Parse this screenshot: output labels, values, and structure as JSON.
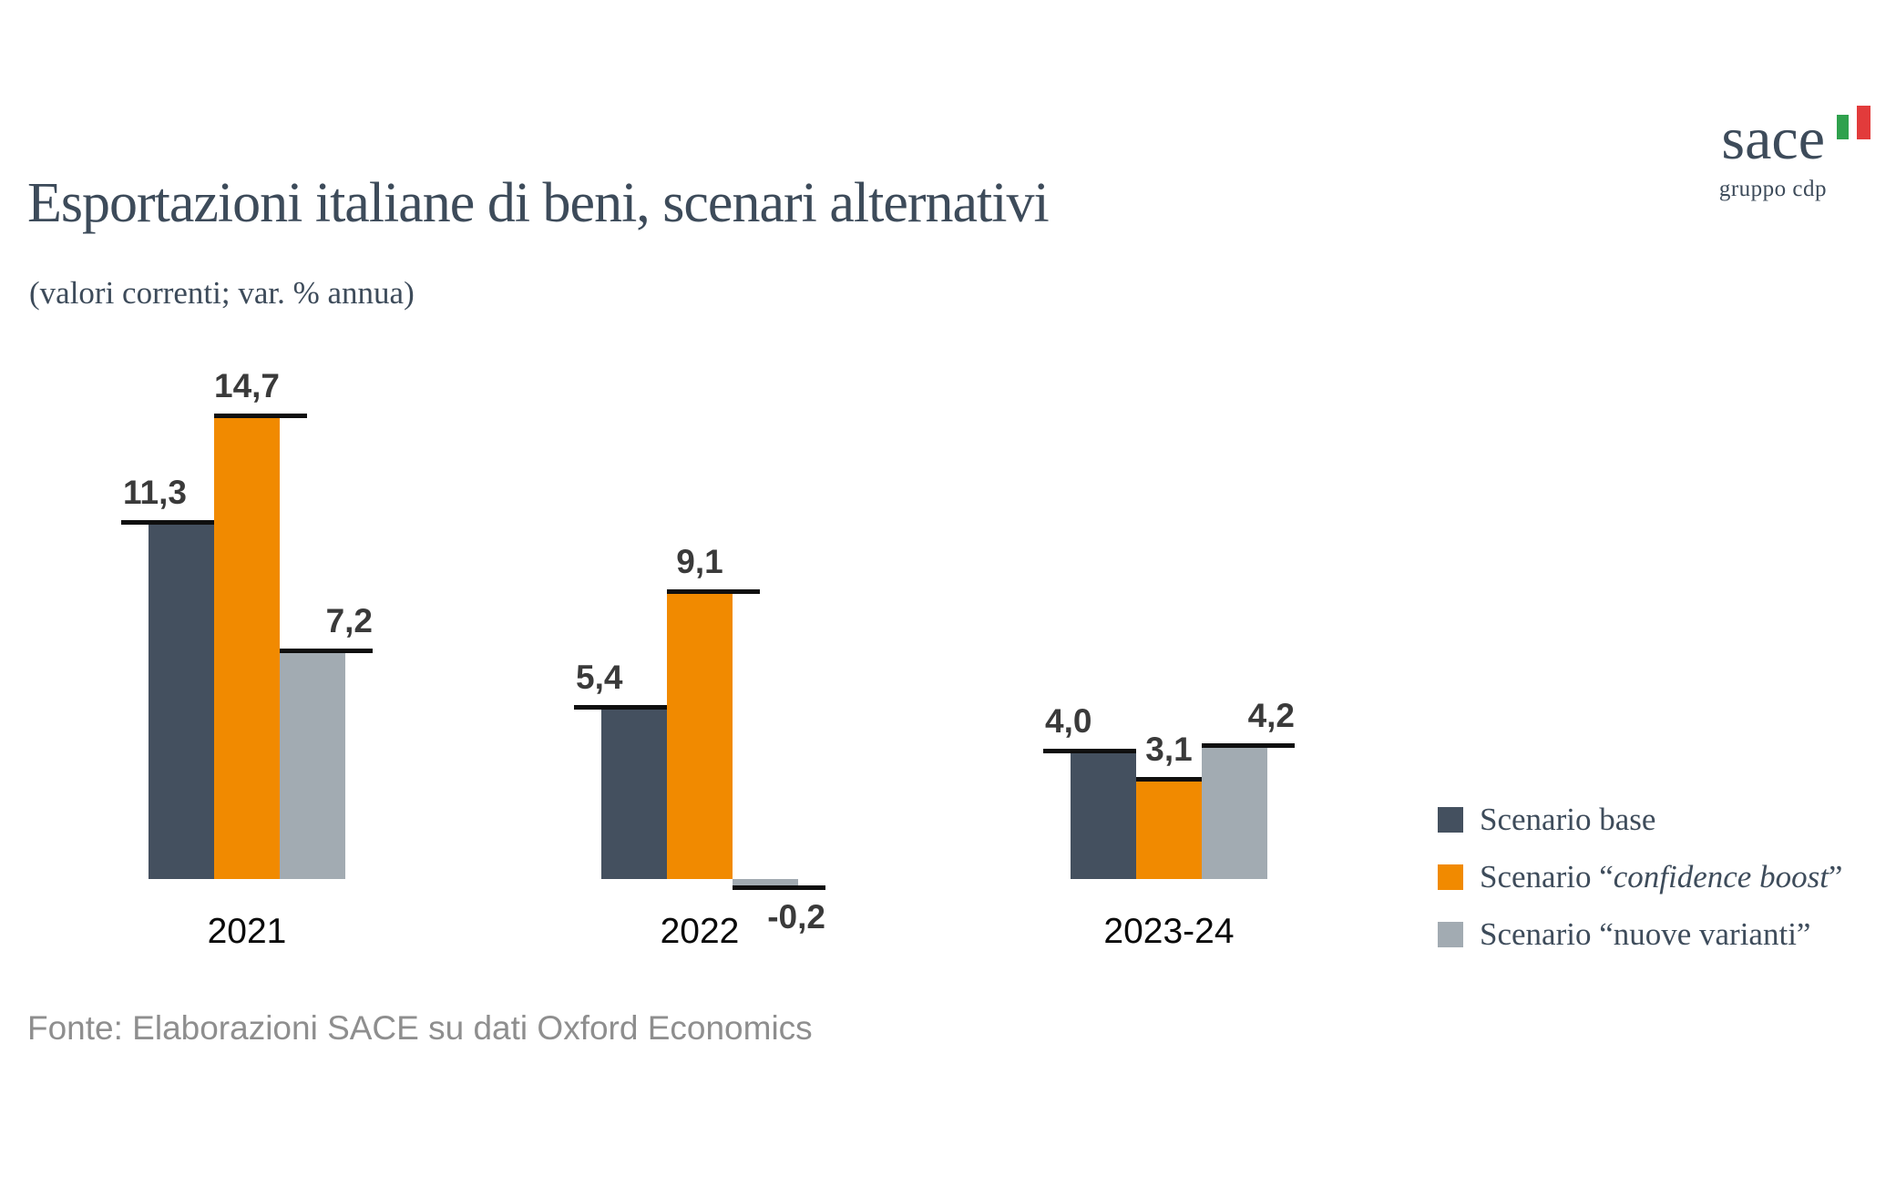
{
  "header": {
    "title": "Esportazioni italiane di beni, scenari alternativi",
    "subtitle": "(valori correnti; var. % annua)"
  },
  "logo": {
    "wordmark": "sace",
    "subtext": "gruppo cdp",
    "flag_green_color": "#2FA14D",
    "flag_red_color": "#E23B3B"
  },
  "footer": {
    "source": "Fonte: Elaborazioni SACE su dati Oxford Economics"
  },
  "colors": {
    "base": "#44505F",
    "confidence": "#F18A00",
    "varianti": "#A2ABB2",
    "marker": "#0F0F0F",
    "heading_text": "#3D4B5A",
    "value_text": "#3A3A3A",
    "footer_text": "#8E8E8E"
  },
  "chart_data": {
    "type": "bar",
    "title": "Esportazioni italiane di beni, scenari alternativi",
    "subtitle": "(valori correnti; var. % annua)",
    "categories": [
      "2021",
      "2022",
      "2023-24"
    ],
    "series": [
      {
        "name": "Scenario base",
        "color_key": "base",
        "values": [
          11.3,
          5.4,
          4.0
        ]
      },
      {
        "name": "Scenario “confidence boost”",
        "color_key": "confidence",
        "values": [
          14.7,
          9.1,
          3.1
        ]
      },
      {
        "name": "Scenario “nuove varianti”",
        "color_key": "varianti",
        "values": [
          7.2,
          -0.2,
          4.2
        ]
      }
    ],
    "value_labels": [
      [
        "11,3",
        "5,4",
        "4,0"
      ],
      [
        "14,7",
        "9,1",
        "3,1"
      ],
      [
        "7,2",
        "-0,2",
        "4,2"
      ]
    ],
    "ylabel": "var. % annua",
    "xlabel": "",
    "ylim": [
      -0.2,
      14.7
    ],
    "grid": false,
    "axes_visible": false,
    "legend_position": "right",
    "source": "Fonte: Elaborazioni SACE su dati Oxford Economics"
  },
  "legend": {
    "items": [
      {
        "pre": "Scenario base",
        "italic": "",
        "post": "",
        "color_key": "base"
      },
      {
        "pre": "Scenario “",
        "italic": "confidence boost",
        "post": "”",
        "color_key": "confidence"
      },
      {
        "pre": "Scenario “nuove varianti”",
        "italic": "",
        "post": "",
        "color_key": "varianti"
      }
    ]
  }
}
